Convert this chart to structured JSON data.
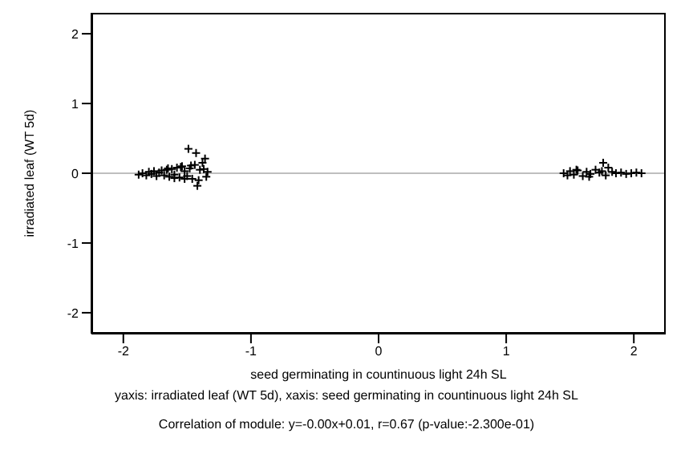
{
  "chart_data": {
    "type": "scatter",
    "xlabel": "seed germinating in countinuous light 24h SL",
    "ylabel": "irradiated leaf (WT 5d)",
    "x": [
      -1.88,
      -1.85,
      -1.82,
      -1.8,
      -1.78,
      -1.76,
      -1.74,
      -1.72,
      -1.7,
      -1.68,
      -1.66,
      -1.64,
      -1.62,
      -1.6,
      -1.58,
      -1.56,
      -1.54,
      -1.52,
      -1.5,
      -1.49,
      -1.48,
      -1.46,
      -1.44,
      -1.43,
      -1.42,
      -1.4,
      -1.38,
      -1.36,
      -1.35,
      -1.34,
      -1.6,
      -1.55,
      -1.47,
      -1.41,
      -1.37,
      -1.65,
      -1.52,
      1.45,
      1.48,
      1.5,
      1.53,
      1.56,
      1.6,
      1.63,
      1.66,
      1.7,
      1.73,
      1.76,
      1.78,
      1.8,
      1.83,
      1.86,
      1.9,
      1.94,
      1.98,
      2.02,
      2.06,
      1.55,
      1.65,
      1.75
    ],
    "values": [
      -0.02,
      0.0,
      -0.03,
      0.02,
      -0.01,
      0.03,
      -0.04,
      0.01,
      0.04,
      -0.03,
      0.05,
      -0.05,
      0.06,
      -0.02,
      0.08,
      -0.06,
      0.1,
      0.03,
      -0.04,
      0.35,
      0.07,
      -0.08,
      0.12,
      0.29,
      -0.18,
      0.05,
      0.15,
      0.21,
      -0.05,
      0.02,
      -0.07,
      0.09,
      0.11,
      -0.1,
      0.06,
      0.07,
      -0.08,
      0.0,
      -0.03,
      0.03,
      -0.02,
      0.04,
      -0.04,
      0.02,
      -0.01,
      0.05,
      0.01,
      0.15,
      -0.03,
      0.08,
      0.02,
      0.0,
      0.01,
      -0.01,
      0.0,
      0.01,
      0.0,
      0.05,
      -0.05,
      0.03
    ],
    "color": "#000000",
    "marker": "cross",
    "xlim": [
      -2.25,
      2.25
    ],
    "ylim": [
      -2.3,
      2.3
    ],
    "xticks": [
      -2,
      -1,
      0,
      1,
      2
    ],
    "yticks": [
      -2,
      -1,
      0,
      1,
      2
    ],
    "ref_lines": [
      {
        "axis": "y",
        "value": 0,
        "color": "#bebebe"
      }
    ],
    "annotations": [
      "yaxis: irradiated leaf (WT 5d), xaxis: seed germinating in countinuous light 24h SL",
      "Correlation of module: y=-0.00x+0.01, r=0.67 (p-value:-2.300e-01)"
    ]
  }
}
